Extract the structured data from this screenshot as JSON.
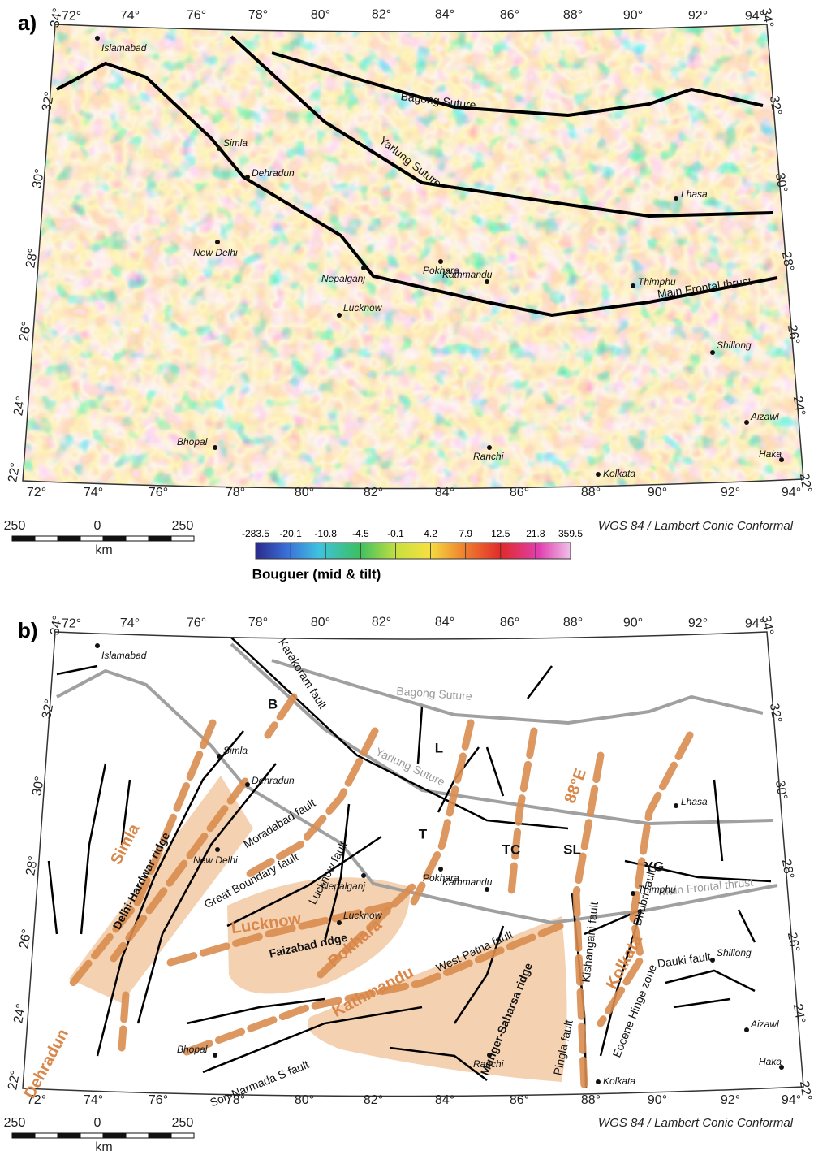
{
  "panels": [
    {
      "label": "a)",
      "lon_labels": [
        "72°",
        "74°",
        "76°",
        "78°",
        "80°",
        "82°",
        "84°",
        "86°",
        "88°",
        "90°",
        "92°",
        "94°"
      ],
      "lat_labels": [
        "22°",
        "24°",
        "26°",
        "28°",
        "30°",
        "32°",
        "34°"
      ],
      "cities": [
        "Islamabad",
        "Simla",
        "Dehradun",
        "New Delhi",
        "Nepalganj",
        "Pokhara",
        "Kathmandu",
        "Thimphu",
        "Lhasa",
        "Lucknow",
        "Shillong",
        "Aizawl",
        "Haka",
        "Bhopal",
        "Ranchi",
        "Kolkata"
      ],
      "faults": [
        "Bagong Suture",
        "Yarlung Suture",
        "Main Frontal thrust"
      ],
      "scale": {
        "labels": [
          "250",
          "0",
          "250"
        ],
        "unit": "km"
      },
      "projection": "WGS 84 / Lambert Conic Conformal",
      "colorbar": {
        "labels": [
          "-283.5",
          "-20.1",
          "-10.8",
          "-4.5",
          "-0.1",
          "4.2",
          "7.9",
          "12.5",
          "21.8",
          "359.5"
        ],
        "title": "Bouguer (mid & tilt)"
      }
    },
    {
      "label": "b)",
      "lon_labels": [
        "72°",
        "74°",
        "76°",
        "78°",
        "80°",
        "82°",
        "84°",
        "86°",
        "88°",
        "90°",
        "92°",
        "94°"
      ],
      "lat_labels": [
        "22°",
        "24°",
        "26°",
        "28°",
        "30°",
        "32°",
        "34°"
      ],
      "cities": [
        "Islamabad",
        "Simla",
        "Dehradun",
        "New Delhi",
        "Nepalganj",
        "Pokhara",
        "Kathmandu",
        "Thimphu",
        "Lhasa",
        "Lucknow",
        "Shillong",
        "Aizawl",
        "Haka",
        "Bhopal",
        "Ranchi",
        "Kolkata"
      ],
      "sutures": [
        "Bagong Suture",
        "Yarlung Suture",
        "Main Frontal thrust"
      ],
      "faults": [
        "Karakoram fault",
        "Moradabad fault",
        "Great Boundary fault",
        "Lucknow fault",
        "West Patna fault",
        "Kishanganj fault",
        "Dhubri fault",
        "Dauki fault",
        "Eocene Hinge zone",
        "Pingla fault",
        "Son Narmada S fault"
      ],
      "ridges": [
        "Delhi-Hardwar ridge",
        "Faizabad ridge",
        "Munger-Saharsa ridge"
      ],
      "zones": [
        "Simla",
        "Dehradun",
        "Lucknow",
        "Pokhara",
        "Kathmandu",
        "Kolkata",
        "88°E"
      ],
      "markers": [
        "B",
        "L",
        "T",
        "TC",
        "SL",
        "YG"
      ],
      "scale": {
        "labels": [
          "250",
          "0",
          "250"
        ],
        "unit": "km"
      },
      "projection": "WGS 84 / Lambert Conic Conformal"
    }
  ]
}
